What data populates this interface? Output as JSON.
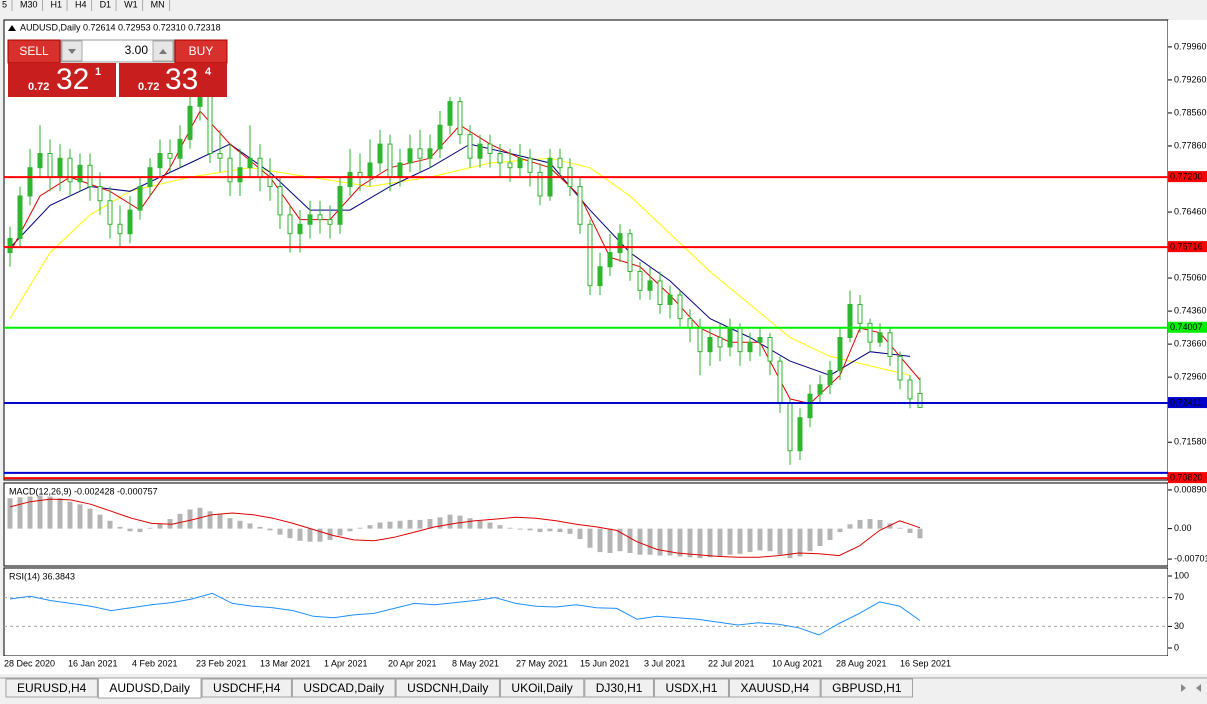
{
  "toolbar": {
    "timeframes": [
      "5",
      "M30",
      "H1",
      "H4",
      "D1",
      "W1",
      "MN"
    ]
  },
  "trade_panel": {
    "sell": "SELL",
    "buy": "BUY",
    "lots": "3.00",
    "sell_price": {
      "small": "0.72",
      "big": "32",
      "sup": "1"
    },
    "buy_price": {
      "small": "0.72",
      "big": "33",
      "sup": "4"
    }
  },
  "chart_data": [
    {
      "type": "candlestick",
      "title": "AUDUSD,Daily  0.72614 0.72953 0.72310 0.72318",
      "color": "#2fb62f",
      "open": [
        0.756,
        0.759,
        0.768,
        0.774,
        0.777,
        0.772,
        0.776,
        0.771,
        0.7745,
        0.77,
        0.767,
        0.762,
        0.76,
        0.765,
        0.77,
        0.774,
        0.777,
        0.776,
        0.78,
        0.787,
        0.79,
        0.777,
        0.776,
        0.771,
        0.774,
        0.776,
        0.772,
        0.77,
        0.764,
        0.76,
        0.762,
        0.764,
        0.763,
        0.762,
        0.77,
        0.773,
        0.772,
        0.775,
        0.779,
        0.772,
        0.775,
        0.778,
        0.776,
        0.778,
        0.783,
        0.788,
        0.781,
        0.776,
        0.779,
        0.777,
        0.775,
        0.774,
        0.776,
        0.773,
        0.768,
        0.776,
        0.774,
        0.77,
        0.762,
        0.749,
        0.753,
        0.756,
        0.76,
        0.752,
        0.748,
        0.75,
        0.745,
        0.747,
        0.742,
        0.74,
        0.735,
        0.738,
        0.736,
        0.74,
        0.735,
        0.737,
        0.738,
        0.733,
        0.724,
        0.714,
        0.721,
        0.726,
        0.728,
        0.731,
        0.738,
        0.745,
        0.741,
        0.737,
        0.739,
        0.734,
        0.729,
        0.72614
      ],
      "high": [
        0.7615,
        0.77,
        0.778,
        0.783,
        0.78,
        0.779,
        0.778,
        0.777,
        0.777,
        0.773,
        0.77,
        0.766,
        0.768,
        0.772,
        0.776,
        0.78,
        0.78,
        0.783,
        0.789,
        0.792,
        0.791,
        0.782,
        0.779,
        0.778,
        0.783,
        0.779,
        0.776,
        0.772,
        0.766,
        0.765,
        0.767,
        0.767,
        0.766,
        0.772,
        0.778,
        0.777,
        0.78,
        0.782,
        0.781,
        0.778,
        0.781,
        0.782,
        0.781,
        0.786,
        0.789,
        0.789,
        0.783,
        0.781,
        0.781,
        0.779,
        0.778,
        0.779,
        0.778,
        0.775,
        0.778,
        0.778,
        0.776,
        0.772,
        0.763,
        0.756,
        0.76,
        0.762,
        0.761,
        0.754,
        0.753,
        0.752,
        0.749,
        0.748,
        0.744,
        0.742,
        0.74,
        0.741,
        0.742,
        0.741,
        0.739,
        0.74,
        0.739,
        0.734,
        0.725,
        0.723,
        0.728,
        0.73,
        0.733,
        0.74,
        0.748,
        0.747,
        0.742,
        0.741,
        0.74,
        0.735,
        0.73,
        0.72953
      ],
      "low": [
        0.753,
        0.757,
        0.766,
        0.772,
        0.769,
        0.769,
        0.768,
        0.769,
        0.767,
        0.764,
        0.759,
        0.757,
        0.758,
        0.763,
        0.768,
        0.772,
        0.773,
        0.774,
        0.778,
        0.784,
        0.775,
        0.773,
        0.768,
        0.768,
        0.772,
        0.769,
        0.767,
        0.761,
        0.756,
        0.756,
        0.759,
        0.76,
        0.759,
        0.76,
        0.768,
        0.769,
        0.77,
        0.773,
        0.769,
        0.77,
        0.773,
        0.773,
        0.774,
        0.776,
        0.781,
        0.779,
        0.774,
        0.774,
        0.774,
        0.772,
        0.771,
        0.772,
        0.77,
        0.766,
        0.767,
        0.772,
        0.768,
        0.76,
        0.747,
        0.747,
        0.751,
        0.754,
        0.75,
        0.746,
        0.746,
        0.743,
        0.742,
        0.74,
        0.737,
        0.73,
        0.732,
        0.733,
        0.734,
        0.732,
        0.733,
        0.734,
        0.73,
        0.722,
        0.711,
        0.712,
        0.719,
        0.724,
        0.726,
        0.729,
        0.737,
        0.739,
        0.735,
        0.736,
        0.732,
        0.727,
        0.723,
        0.7231
      ],
      "close": [
        0.759,
        0.768,
        0.774,
        0.777,
        0.772,
        0.776,
        0.771,
        0.7745,
        0.77,
        0.767,
        0.762,
        0.76,
        0.765,
        0.77,
        0.774,
        0.777,
        0.776,
        0.78,
        0.787,
        0.79,
        0.777,
        0.776,
        0.771,
        0.774,
        0.776,
        0.772,
        0.77,
        0.764,
        0.76,
        0.762,
        0.764,
        0.763,
        0.762,
        0.77,
        0.773,
        0.772,
        0.775,
        0.779,
        0.772,
        0.775,
        0.778,
        0.776,
        0.778,
        0.783,
        0.788,
        0.781,
        0.776,
        0.779,
        0.777,
        0.775,
        0.774,
        0.776,
        0.773,
        0.768,
        0.776,
        0.774,
        0.77,
        0.762,
        0.749,
        0.753,
        0.756,
        0.76,
        0.752,
        0.748,
        0.75,
        0.745,
        0.747,
        0.742,
        0.74,
        0.735,
        0.738,
        0.736,
        0.74,
        0.735,
        0.737,
        0.738,
        0.733,
        0.724,
        0.714,
        0.721,
        0.726,
        0.728,
        0.731,
        0.738,
        0.745,
        0.741,
        0.737,
        0.739,
        0.734,
        0.729,
        0.725,
        0.72318
      ],
      "ma": [
        {
          "color": "#ffff00",
          "x": [
            0,
            4,
            8,
            12,
            18,
            24,
            30,
            36,
            42,
            48,
            54,
            58,
            62,
            66,
            70,
            74,
            78,
            82,
            86,
            90
          ],
          "values": [
            0.742,
            0.756,
            0.764,
            0.769,
            0.772,
            0.774,
            0.772,
            0.77,
            0.772,
            0.775,
            0.776,
            0.774,
            0.768,
            0.76,
            0.752,
            0.745,
            0.738,
            0.734,
            0.732,
            0.73
          ]
        },
        {
          "color": "#000080",
          "x": [
            0,
            4,
            8,
            12,
            18,
            22,
            26,
            30,
            34,
            38,
            42,
            46,
            50,
            54,
            58,
            62,
            66,
            70,
            74,
            78,
            82,
            86,
            90
          ],
          "values": [
            0.757,
            0.766,
            0.77,
            0.769,
            0.775,
            0.779,
            0.773,
            0.765,
            0.765,
            0.77,
            0.774,
            0.779,
            0.777,
            0.775,
            0.765,
            0.756,
            0.75,
            0.742,
            0.738,
            0.733,
            0.73,
            0.735,
            0.734
          ]
        },
        {
          "color": "#e00000",
          "x": [
            0,
            3,
            6,
            10,
            13,
            16,
            19,
            22,
            26,
            29,
            32,
            35,
            38,
            42,
            45,
            48,
            51,
            54,
            57,
            60,
            63,
            66,
            69,
            72,
            75,
            78,
            80,
            83,
            85,
            87,
            89,
            91
          ],
          "values": [
            0.756,
            0.768,
            0.772,
            0.769,
            0.765,
            0.774,
            0.786,
            0.779,
            0.772,
            0.763,
            0.763,
            0.77,
            0.774,
            0.776,
            0.783,
            0.779,
            0.776,
            0.774,
            0.768,
            0.755,
            0.753,
            0.747,
            0.74,
            0.737,
            0.737,
            0.725,
            0.724,
            0.73,
            0.74,
            0.739,
            0.734,
            0.729
          ]
        }
      ],
      "levels": [
        {
          "value": 0.772,
          "label": "0.77200",
          "color": "#ff0000"
        },
        {
          "value": 0.75716,
          "label": "0.75716",
          "color": "#ff0000"
        },
        {
          "value": 0.74007,
          "label": "0.74007",
          "color": "#00ee00"
        },
        {
          "value": 0.72411,
          "label": "0.72411",
          "color": "#0000cd"
        },
        {
          "value": 0.7093,
          "color": "#0000cd"
        },
        {
          "value": 0.7082,
          "label": "0.70820",
          "color": "#ff0000"
        }
      ],
      "ylim": [
        0.7078,
        0.8053
      ],
      "yticks": [
        {
          "value": 0.7996,
          "label": "0.79960"
        },
        {
          "value": 0.7926,
          "label": "0.79260"
        },
        {
          "value": 0.7856,
          "label": "0.78560"
        },
        {
          "value": 0.7786,
          "label": "0.77860"
        },
        {
          "value": 0.7646,
          "label": "0.76460"
        },
        {
          "value": 0.7506,
          "label": "0.75060"
        },
        {
          "value": 0.7436,
          "label": "0.74360"
        },
        {
          "value": 0.7366,
          "label": "0.73660"
        },
        {
          "value": 0.7296,
          "label": "0.72960"
        },
        {
          "value": 0.7158,
          "label": "0.71580"
        }
      ],
      "xticks": [
        "28 Dec 2020",
        "16 Jan 2021",
        "4 Feb 2021",
        "23 Feb 2021",
        "13 Mar 2021",
        "1 Apr 2021",
        "20 Apr 2021",
        "8 May 2021",
        "27 May 2021",
        "15 Jun 2021",
        "3 Jul 2021",
        "22 Jul 2021",
        "10 Aug 2021",
        "28 Aug 2021",
        "16 Sep 2021"
      ]
    },
    {
      "type": "macd",
      "title": "MACD(12,26,9) -0.002428 -0.000757",
      "color": "#b4b4b4",
      "values": [
        0.007,
        0.0072,
        0.0074,
        0.0076,
        0.0074,
        0.007,
        0.0062,
        0.0056,
        0.0046,
        0.0032,
        0.0018,
        0.0004,
        -0.0006,
        -0.0008,
        0.0002,
        0.0012,
        0.0022,
        0.0034,
        0.0044,
        0.0048,
        0.004,
        0.0034,
        0.0024,
        0.0018,
        0.0012,
        0.0004,
        -0.0004,
        -0.0014,
        -0.0022,
        -0.0028,
        -0.003,
        -0.003,
        -0.0026,
        -0.0016,
        -0.0006,
        0.0002,
        0.0008,
        0.0014,
        0.0016,
        0.0018,
        0.002,
        0.002,
        0.0022,
        0.0026,
        0.0032,
        0.003,
        0.0024,
        0.0018,
        0.0014,
        0.0008,
        0.0002,
        -0.0002,
        -0.0004,
        -0.0008,
        -0.0006,
        -0.0008,
        -0.0012,
        -0.0024,
        -0.0044,
        -0.0054,
        -0.0056,
        -0.0052,
        -0.0056,
        -0.006,
        -0.006,
        -0.0062,
        -0.0062,
        -0.0064,
        -0.0066,
        -0.0068,
        -0.0066,
        -0.0064,
        -0.006,
        -0.0058,
        -0.0054,
        -0.005,
        -0.0052,
        -0.006,
        -0.0068,
        -0.0064,
        -0.0052,
        -0.004,
        -0.0026,
        -0.0008,
        0.001,
        0.002,
        0.0022,
        0.002,
        0.0012,
        0.0002,
        -0.001,
        -0.0022
      ],
      "signal": {
        "color": "#e00000",
        "values": [
          0.005,
          0.0062,
          0.0068,
          0.0066,
          0.0056,
          0.004,
          0.0024,
          0.0012,
          0.001,
          0.002,
          0.0032,
          0.0036,
          0.0032,
          0.0024,
          0.0012,
          -0.0002,
          -0.0016,
          -0.0026,
          -0.0028,
          -0.002,
          -0.0008,
          0.0004,
          0.0012,
          0.0018,
          0.0022,
          0.0026,
          0.0024,
          0.0018,
          0.001,
          0.0004,
          -0.0004,
          -0.003,
          -0.0048,
          -0.0056,
          -0.006,
          -0.0064,
          -0.0066,
          -0.0066,
          -0.0062,
          -0.0056,
          -0.0058,
          -0.0062,
          -0.004,
          -0.0004,
          0.0018,
          0.0002
        ]
      },
      "ylim": [
        -0.0086,
        0.0105
      ],
      "yticks": [
        0.008904,
        {
          "value": 0,
          "label": "0.00"
        },
        -0.00701
      ]
    },
    {
      "type": "rsi",
      "title": "RSI(14) 36.3843",
      "color": "#1e90ff",
      "values": [
        68,
        72,
        66,
        62,
        58,
        52,
        56,
        60,
        63,
        68,
        76,
        62,
        58,
        56,
        52,
        44,
        42,
        46,
        48,
        55,
        62,
        60,
        63,
        66,
        70,
        62,
        58,
        57,
        60,
        56,
        55,
        40,
        44,
        42,
        40,
        36,
        32,
        35,
        33,
        28,
        18,
        34,
        48,
        64,
        58,
        38
      ],
      "ylim": [
        0,
        100
      ],
      "yticks": [
        100,
        70,
        30,
        0
      ]
    }
  ],
  "tabs": [
    "EURUSD,H4",
    "AUDUSD,Daily",
    "USDCHF,H4",
    "USDCAD,Daily",
    "USDCNH,Daily",
    "UKOil,Daily",
    "DJ30,H1",
    "USDX,H1",
    "XAUUSD,H4",
    "GBPUSD,H1"
  ]
}
